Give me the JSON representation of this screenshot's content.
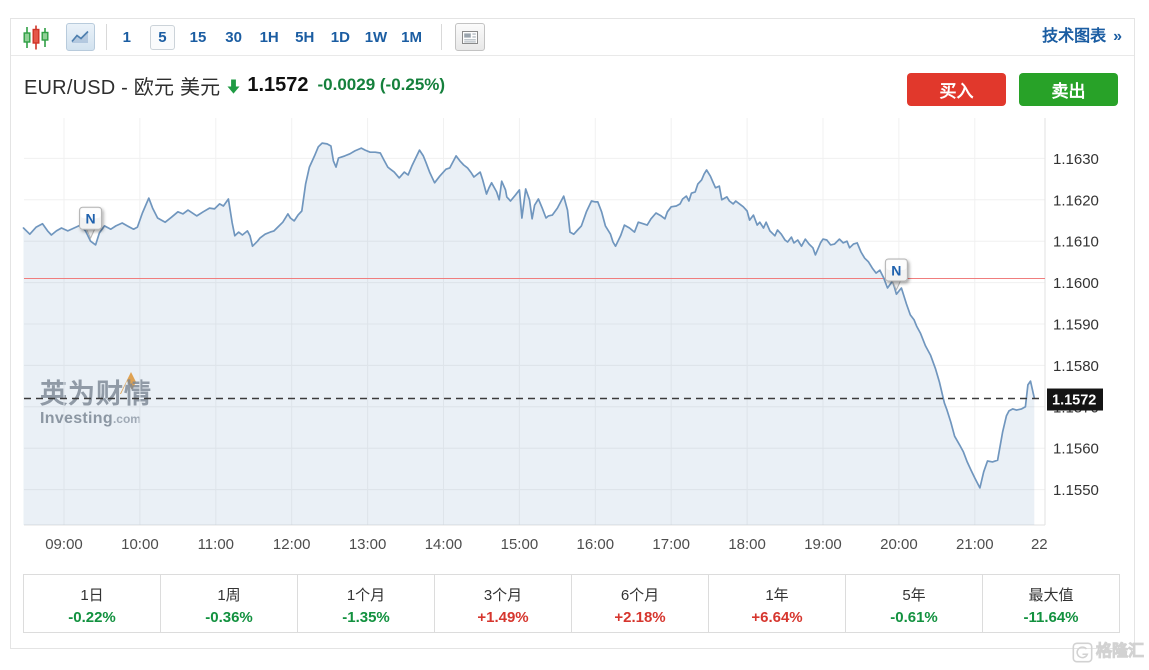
{
  "toolbar": {
    "candlestick_icon": "candlestick-chart-type",
    "line_icon": "line-chart-type",
    "timeframes": [
      "1",
      "5",
      "15",
      "30",
      "1H",
      "5H",
      "1D",
      "1W",
      "1M"
    ],
    "selected_timeframe": "5",
    "news_toggle_icon": "news-markers-toggle",
    "technical_chart_label": "技术图表",
    "technical_chart_arrow": "»"
  },
  "header": {
    "symbol": "EUR/USD - 欧元 美元",
    "direction": "down",
    "price": "1.1572",
    "change": "-0.0029 (-0.25%)",
    "buy_label": "买入",
    "sell_label": "卖出"
  },
  "chart_data": {
    "type": "area",
    "title": "",
    "x_ticks": [
      {
        "label": "09:00",
        "hour": 9
      },
      {
        "label": "10:00",
        "hour": 10
      },
      {
        "label": "11:00",
        "hour": 11
      },
      {
        "label": "12:00",
        "hour": 12
      },
      {
        "label": "13:00",
        "hour": 13
      },
      {
        "label": "14:00",
        "hour": 14
      },
      {
        "label": "15:00",
        "hour": 15
      },
      {
        "label": "16:00",
        "hour": 16
      },
      {
        "label": "17:00",
        "hour": 17
      },
      {
        "label": "18:00",
        "hour": 18
      },
      {
        "label": "19:00",
        "hour": 19
      },
      {
        "label": "20:00",
        "hour": 20
      },
      {
        "label": "21:00",
        "hour": 21
      },
      {
        "label": "22",
        "hour": 21.85
      }
    ],
    "y_ticks": [
      {
        "label": "1.1630",
        "value": 1.163
      },
      {
        "label": "1.1620",
        "value": 1.162
      },
      {
        "label": "1.1610",
        "value": 1.161
      },
      {
        "label": "1.1600",
        "value": 1.16
      },
      {
        "label": "1.1590",
        "value": 1.159
      },
      {
        "label": "1.1580",
        "value": 1.158
      },
      {
        "label": "1.1570",
        "value": 1.157
      },
      {
        "label": "1.1560",
        "value": 1.156
      },
      {
        "label": "1.1550",
        "value": 1.155
      }
    ],
    "ylim": [
      1.15415,
      1.16375
    ],
    "grid": true,
    "prev_close_line": 1.1601,
    "last_price": 1.1572,
    "last_price_label": "1.1572",
    "news_markers": [
      {
        "label": "N",
        "time": "09:21",
        "price": 1.161
      },
      {
        "label": "N",
        "time": "19:58",
        "price": 1.15975
      }
    ],
    "watermark_cn": "英为财情",
    "watermark_en": "Investing",
    "watermark_domain": ".com",
    "points": [
      [
        "08:28",
        1.16132
      ],
      [
        "08:33",
        1.16117
      ],
      [
        "08:38",
        1.16134
      ],
      [
        "08:43",
        1.16142
      ],
      [
        "08:47",
        1.16125
      ],
      [
        "08:50",
        1.16115
      ],
      [
        "08:54",
        1.16125
      ],
      [
        "08:58",
        1.16132
      ],
      [
        "09:03",
        1.16125
      ],
      [
        "09:08",
        1.16132
      ],
      [
        "09:13",
        1.16139
      ],
      [
        "09:17",
        1.16125
      ],
      [
        "09:21",
        1.161
      ],
      [
        "09:25",
        1.16091
      ],
      [
        "09:28",
        1.1612
      ],
      [
        "09:32",
        1.16137
      ],
      [
        "09:37",
        1.16129
      ],
      [
        "09:41",
        1.16137
      ],
      [
        "09:46",
        1.16144
      ],
      [
        "09:50",
        1.16137
      ],
      [
        "09:55",
        1.16129
      ],
      [
        "09:58",
        1.16134
      ],
      [
        "10:02",
        1.16168
      ],
      [
        "10:07",
        1.16204
      ],
      [
        "10:10",
        1.1618
      ],
      [
        "10:14",
        1.16156
      ],
      [
        "10:20",
        1.16146
      ],
      [
        "10:25",
        1.16158
      ],
      [
        "10:30",
        1.16171
      ],
      [
        "10:34",
        1.16166
      ],
      [
        "10:38",
        1.16175
      ],
      [
        "10:45",
        1.16161
      ],
      [
        "10:50",
        1.16171
      ],
      [
        "10:55",
        1.1618
      ],
      [
        "10:59",
        1.16178
      ],
      [
        "11:03",
        1.1619
      ],
      [
        "11:06",
        1.16185
      ],
      [
        "11:10",
        1.16202
      ],
      [
        "11:13",
        1.16144
      ],
      [
        "11:15",
        1.16113
      ],
      [
        "11:18",
        1.16122
      ],
      [
        "11:21",
        1.16115
      ],
      [
        "11:25",
        1.16125
      ],
      [
        "11:27",
        1.16113
      ],
      [
        "11:29",
        1.16088
      ],
      [
        "11:33",
        1.161
      ],
      [
        "11:35",
        1.16108
      ],
      [
        "11:39",
        1.16117
      ],
      [
        "11:43",
        1.16122
      ],
      [
        "11:46",
        1.16125
      ],
      [
        "11:49",
        1.16134
      ],
      [
        "11:53",
        1.16146
      ],
      [
        "11:57",
        1.16166
      ],
      [
        "11:59",
        1.16156
      ],
      [
        "12:02",
        1.16149
      ],
      [
        "12:05",
        1.16163
      ],
      [
        "12:08",
        1.16173
      ],
      [
        "12:11",
        1.16238
      ],
      [
        "12:14",
        1.16279
      ],
      [
        "12:18",
        1.16306
      ],
      [
        "12:21",
        1.16328
      ],
      [
        "12:24",
        1.16337
      ],
      [
        "12:28",
        1.16335
      ],
      [
        "12:31",
        1.1633
      ],
      [
        "12:33",
        1.16294
      ],
      [
        "12:35",
        1.16279
      ],
      [
        "12:37",
        1.16301
      ],
      [
        "12:39",
        1.16303
      ],
      [
        "12:42",
        1.16306
      ],
      [
        "12:46",
        1.16311
      ],
      [
        "12:50",
        1.16318
      ],
      [
        "12:55",
        1.16325
      ],
      [
        "12:58",
        1.1632
      ],
      [
        "13:02",
        1.16315
      ],
      [
        "13:06",
        1.16315
      ],
      [
        "13:10",
        1.16313
      ],
      [
        "13:13",
        1.16296
      ],
      [
        "13:16",
        1.16279
      ],
      [
        "13:18",
        1.16274
      ],
      [
        "13:21",
        1.16267
      ],
      [
        "13:25",
        1.16253
      ],
      [
        "13:29",
        1.16267
      ],
      [
        "13:32",
        1.1626
      ],
      [
        "13:35",
        1.16282
      ],
      [
        "13:41",
        1.1632
      ],
      [
        "13:44",
        1.16306
      ],
      [
        "13:46",
        1.16291
      ],
      [
        "13:49",
        1.16267
      ],
      [
        "13:53",
        1.16241
      ],
      [
        "13:57",
        1.16257
      ],
      [
        "14:02",
        1.16274
      ],
      [
        "14:05",
        1.16277
      ],
      [
        "14:10",
        1.16306
      ],
      [
        "14:13",
        1.16294
      ],
      [
        "14:16",
        1.16284
      ],
      [
        "14:19",
        1.16277
      ],
      [
        "14:22",
        1.16265
      ],
      [
        "14:24",
        1.16255
      ],
      [
        "14:29",
        1.16267
      ],
      [
        "14:31",
        1.16248
      ],
      [
        "14:34",
        1.16214
      ],
      [
        "14:36",
        1.16229
      ],
      [
        "14:38",
        1.16241
      ],
      [
        "14:42",
        1.16219
      ],
      [
        "14:44",
        1.162
      ],
      [
        "14:46",
        1.16245
      ],
      [
        "14:49",
        1.16224
      ],
      [
        "14:50",
        1.16207
      ],
      [
        "14:53",
        1.16197
      ],
      [
        "14:57",
        1.16212
      ],
      [
        "15:00",
        1.16224
      ],
      [
        "15:02",
        1.16156
      ],
      [
        "15:05",
        1.16226
      ],
      [
        "15:08",
        1.162
      ],
      [
        "15:10",
        1.16154
      ],
      [
        "15:12",
        1.16187
      ],
      [
        "15:15",
        1.16202
      ],
      [
        "15:18",
        1.1618
      ],
      [
        "15:21",
        1.16156
      ],
      [
        "15:23",
        1.16161
      ],
      [
        "15:26",
        1.16163
      ],
      [
        "15:30",
        1.1618
      ],
      [
        "15:35",
        1.16209
      ],
      [
        "15:38",
        1.16175
      ],
      [
        "15:40",
        1.16122
      ],
      [
        "15:43",
        1.16117
      ],
      [
        "15:46",
        1.16127
      ],
      [
        "15:49",
        1.16137
      ],
      [
        "15:53",
        1.16171
      ],
      [
        "15:57",
        1.16197
      ],
      [
        "16:00",
        1.16195
      ],
      [
        "16:02",
        1.16195
      ],
      [
        "16:05",
        1.16171
      ],
      [
        "16:08",
        1.16137
      ],
      [
        "16:12",
        1.16117
      ],
      [
        "16:14",
        1.16098
      ],
      [
        "16:16",
        1.16088
      ],
      [
        "16:20",
        1.16113
      ],
      [
        "16:23",
        1.16139
      ],
      [
        "16:27",
        1.16132
      ],
      [
        "16:31",
        1.16122
      ],
      [
        "16:34",
        1.16146
      ],
      [
        "16:38",
        1.16142
      ],
      [
        "16:41",
        1.16139
      ],
      [
        "16:44",
        1.16154
      ],
      [
        "16:48",
        1.16168
      ],
      [
        "16:52",
        1.16161
      ],
      [
        "16:55",
        1.16154
      ],
      [
        "16:57",
        1.16171
      ],
      [
        "17:00",
        1.16183
      ],
      [
        "17:04",
        1.16185
      ],
      [
        "17:07",
        1.1619
      ],
      [
        "17:09",
        1.16202
      ],
      [
        "17:12",
        1.16209
      ],
      [
        "17:14",
        1.16197
      ],
      [
        "17:16",
        1.16216
      ],
      [
        "17:19",
        1.16219
      ],
      [
        "17:21",
        1.16238
      ],
      [
        "17:24",
        1.16248
      ],
      [
        "17:26",
        1.16262
      ],
      [
        "17:28",
        1.16272
      ],
      [
        "17:31",
        1.16257
      ],
      [
        "17:33",
        1.16243
      ],
      [
        "17:35",
        1.16229
      ],
      [
        "17:38",
        1.16233
      ],
      [
        "17:40",
        1.162
      ],
      [
        "17:44",
        1.16207
      ],
      [
        "17:46",
        1.16197
      ],
      [
        "17:49",
        1.1619
      ],
      [
        "17:51",
        1.16197
      ],
      [
        "17:54",
        1.1619
      ],
      [
        "17:57",
        1.16183
      ],
      [
        "18:00",
        1.16173
      ],
      [
        "18:02",
        1.16151
      ],
      [
        "18:05",
        1.16163
      ],
      [
        "18:08",
        1.16139
      ],
      [
        "18:10",
        1.16146
      ],
      [
        "18:13",
        1.16132
      ],
      [
        "18:15",
        1.16146
      ],
      [
        "18:18",
        1.16125
      ],
      [
        "18:22",
        1.16113
      ],
      [
        "18:24",
        1.16127
      ],
      [
        "18:27",
        1.16117
      ],
      [
        "18:30",
        1.16103
      ],
      [
        "18:32",
        1.16098
      ],
      [
        "18:35",
        1.1611
      ],
      [
        "18:37",
        1.16096
      ],
      [
        "18:40",
        1.16103
      ],
      [
        "18:43",
        1.16088
      ],
      [
        "18:46",
        1.16105
      ],
      [
        "18:49",
        1.16093
      ],
      [
        "18:52",
        1.16084
      ],
      [
        "18:54",
        1.16067
      ],
      [
        "18:58",
        1.16096
      ],
      [
        "19:00",
        1.16105
      ],
      [
        "19:03",
        1.16103
      ],
      [
        "19:06",
        1.16091
      ],
      [
        "19:09",
        1.16093
      ],
      [
        "19:13",
        1.16105
      ],
      [
        "19:16",
        1.16096
      ],
      [
        "19:19",
        1.161
      ],
      [
        "19:21",
        1.16084
      ],
      [
        "19:24",
        1.16093
      ],
      [
        "19:27",
        1.16096
      ],
      [
        "19:30",
        1.16074
      ],
      [
        "19:33",
        1.16059
      ],
      [
        "19:36",
        1.1605
      ],
      [
        "19:39",
        1.16035
      ],
      [
        "19:42",
        1.16023
      ],
      [
        "19:45",
        1.1603
      ],
      [
        "19:48",
        1.16011
      ],
      [
        "19:51",
        1.15987
      ],
      [
        "19:55",
        1.16004
      ],
      [
        "19:58",
        1.15972
      ],
      [
        "20:02",
        1.15987
      ],
      [
        "20:06",
        1.15948
      ],
      [
        "20:09",
        1.15922
      ],
      [
        "20:12",
        1.1591
      ],
      [
        "20:14",
        1.15895
      ],
      [
        "20:17",
        1.15878
      ],
      [
        "20:21",
        1.15847
      ],
      [
        "20:25",
        1.15825
      ],
      [
        "20:29",
        1.15791
      ],
      [
        "20:32",
        1.1576
      ],
      [
        "20:36",
        1.15709
      ],
      [
        "20:38",
        1.15692
      ],
      [
        "20:41",
        1.15663
      ],
      [
        "20:44",
        1.15629
      ],
      [
        "20:48",
        1.15608
      ],
      [
        "20:51",
        1.15591
      ],
      [
        "20:54",
        1.15567
      ],
      [
        "20:57",
        1.15547
      ],
      [
        "21:00",
        1.15528
      ],
      [
        "21:04",
        1.15504
      ],
      [
        "21:07",
        1.15543
      ],
      [
        "21:10",
        1.15569
      ],
      [
        "21:14",
        1.15567
      ],
      [
        "21:18",
        1.15571
      ],
      [
        "21:22",
        1.15639
      ],
      [
        "21:25",
        1.15678
      ],
      [
        "21:27",
        1.1569
      ],
      [
        "21:30",
        1.15695
      ],
      [
        "21:33",
        1.15692
      ],
      [
        "21:37",
        1.15695
      ],
      [
        "21:40",
        1.157
      ],
      [
        "21:42",
        1.15753
      ],
      [
        "21:44",
        1.15762
      ],
      [
        "21:47",
        1.15721
      ]
    ]
  },
  "performance": {
    "items": [
      {
        "label": "1日",
        "value": "-0.22%",
        "direction": "down"
      },
      {
        "label": "1周",
        "value": "-0.36%",
        "direction": "down"
      },
      {
        "label": "1个月",
        "value": "-1.35%",
        "direction": "down"
      },
      {
        "label": "3个月",
        "value": "+1.49%",
        "direction": "up"
      },
      {
        "label": "6个月",
        "value": "+2.18%",
        "direction": "up"
      },
      {
        "label": "1年",
        "value": "+6.64%",
        "direction": "up"
      },
      {
        "label": "5年",
        "value": "-0.61%",
        "direction": "down"
      },
      {
        "label": "最大值",
        "value": "-11.64%",
        "direction": "down"
      }
    ]
  },
  "site_watermark": {
    "logo": "G",
    "text": "格隆汇"
  },
  "colors": {
    "accent_blue": "#1b5da2",
    "up_red": "#d6362e",
    "down_green": "#12913f",
    "buy_button_red": "#e1382c",
    "sell_button_green": "#28a228",
    "price_line_blue": "#7096be",
    "area_fill": "rgba(127,163,199,0.16)",
    "prev_close_red": "#f07d7d",
    "last_price_tag_bg": "#141414",
    "change_text_green": "#15803c"
  }
}
